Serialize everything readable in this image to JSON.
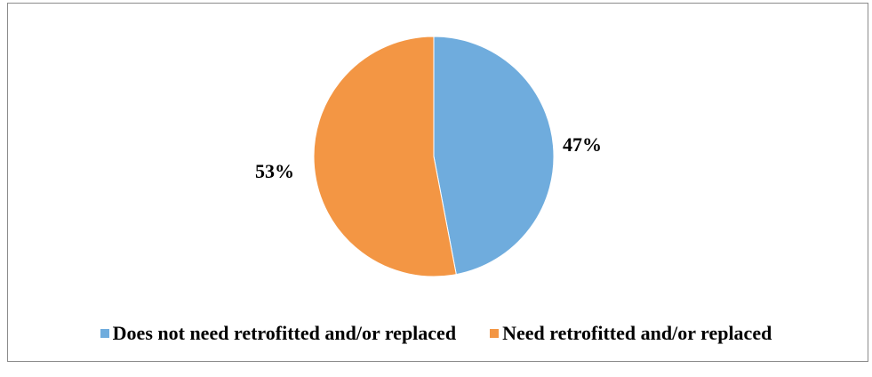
{
  "chart_data": {
    "type": "pie",
    "title": "",
    "slices": [
      {
        "label": "Does not need retrofitted and/or replaced",
        "value": 47,
        "display": "47%",
        "color": "#6FACDD"
      },
      {
        "label": "Need retrofitted and/or replaced",
        "value": 53,
        "display": "53%",
        "color": "#F39644"
      }
    ],
    "start_angle": "12 o'clock",
    "direction": "clockwise",
    "legend_position": "bottom"
  }
}
